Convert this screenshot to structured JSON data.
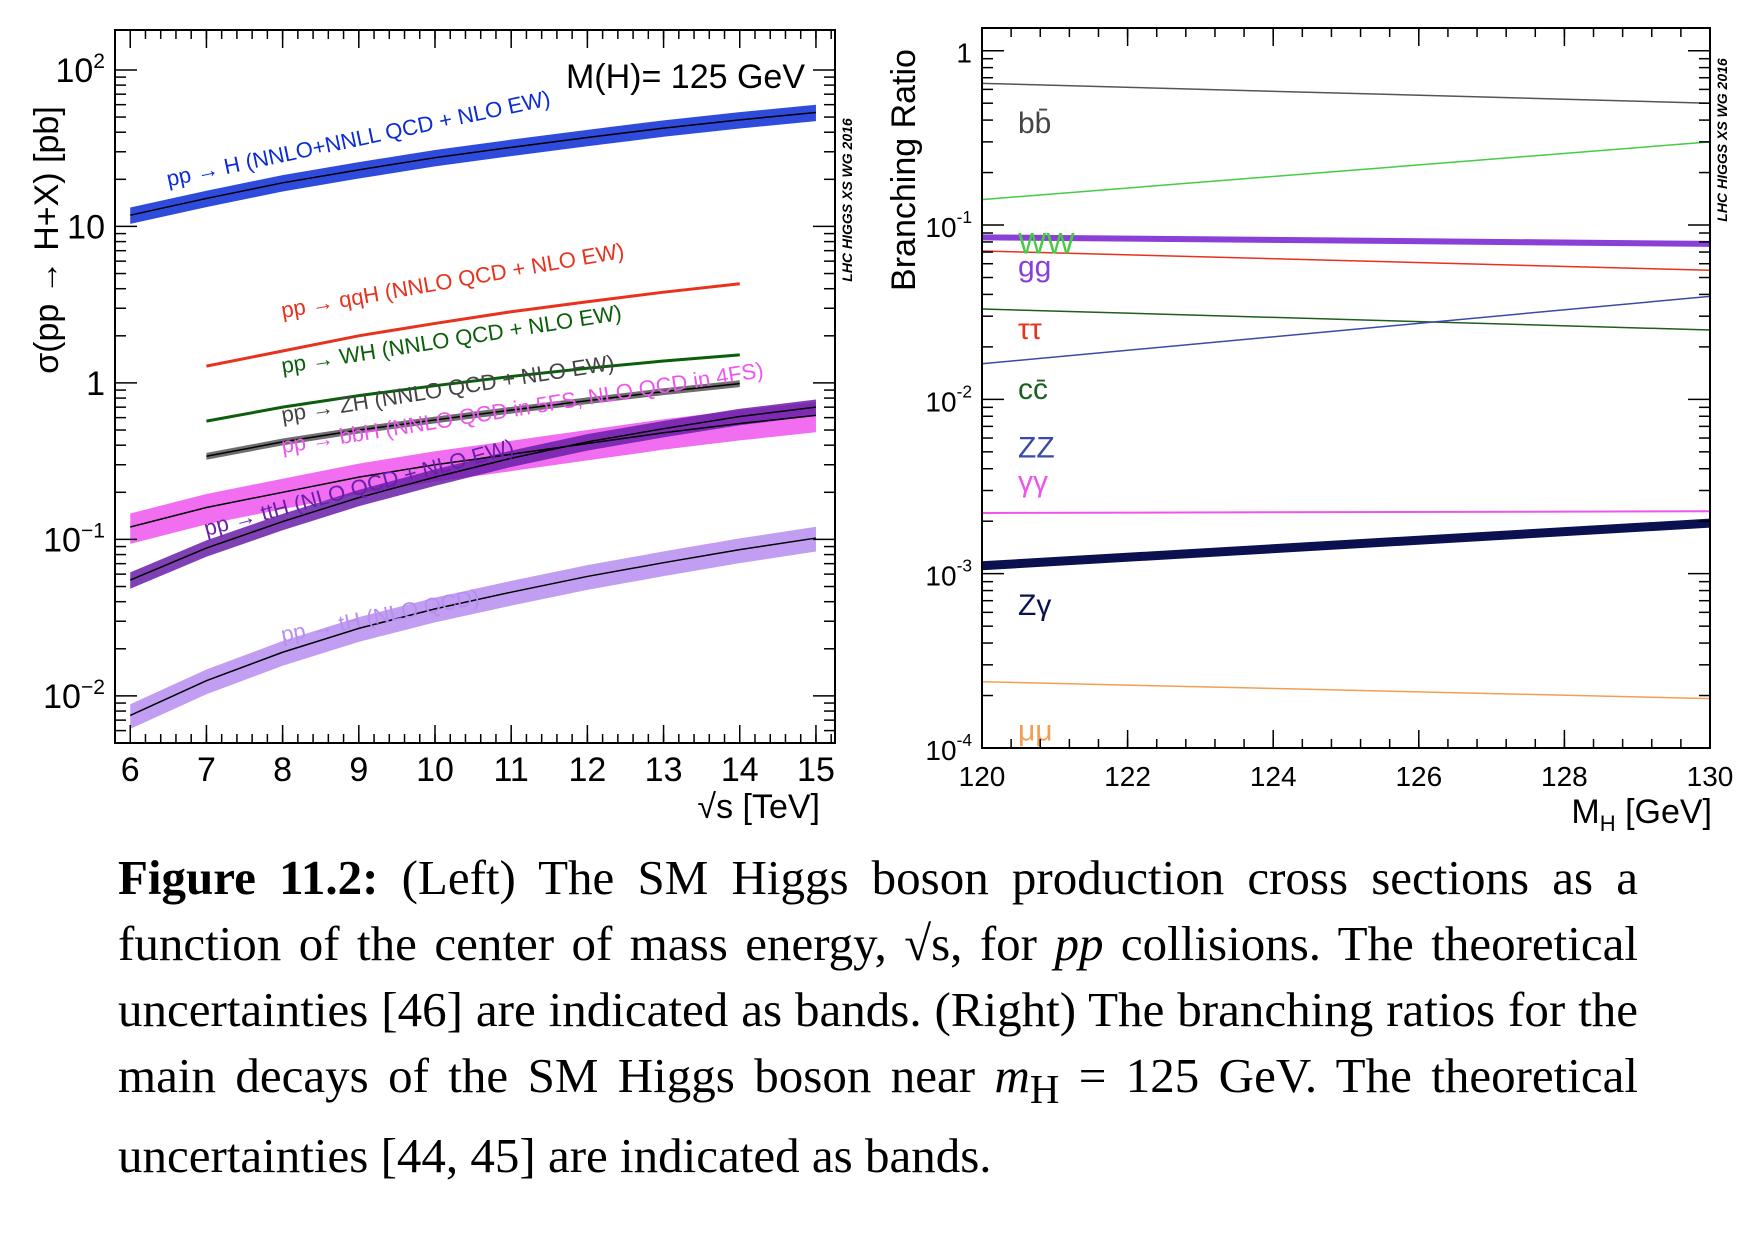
{
  "chart_data": [
    {
      "type": "line",
      "ylabel": "σ(pp → H+X) [pb]",
      "xlabel": "√s [TeV]",
      "annotation": "M(H)= 125 GeV",
      "watermark": "LHC HIGGS XS WG 2016",
      "xlim": [
        5.8,
        15.25
      ],
      "ylim": [
        0.005,
        180
      ],
      "yscale": "log",
      "xticks": [
        6,
        7,
        8,
        9,
        10,
        11,
        12,
        13,
        14,
        15
      ],
      "yticks": [
        {
          "value": 0.01,
          "base": "10",
          "exp": "−2"
        },
        {
          "value": 0.1,
          "base": "10",
          "exp": "−1"
        },
        {
          "value": 1,
          "base": "1",
          "exp": ""
        },
        {
          "value": 10,
          "base": "10",
          "exp": ""
        },
        {
          "value": 100,
          "base": "10",
          "exp": "2"
        }
      ],
      "series": [
        {
          "name": "pp → H (NNLO+NNLL QCD + NLO EW)",
          "color": "#0a2bd6",
          "band": true,
          "x": [
            6,
            7,
            8,
            9,
            10,
            11,
            12,
            13,
            14,
            15
          ],
          "y": [
            11.8,
            15.1,
            19.0,
            23.0,
            27.5,
            32.0,
            37.0,
            42.5,
            48.0,
            53.5
          ],
          "rel_unc": 0.12
        },
        {
          "name": "pp → qqH (NNLO QCD + NLO EW)",
          "color": "#e8321e",
          "band": false,
          "x": [
            7,
            8,
            9,
            10,
            11,
            12,
            13,
            14
          ],
          "y": [
            1.28,
            1.6,
            2.0,
            2.4,
            2.85,
            3.3,
            3.8,
            4.3
          ]
        },
        {
          "name": "pp → WH (NNLO QCD + NLO EW)",
          "color": "#0b5e0b",
          "band": false,
          "x": [
            7,
            8,
            9,
            10,
            11,
            12,
            13,
            14
          ],
          "y": [
            0.57,
            0.7,
            0.83,
            0.96,
            1.1,
            1.24,
            1.38,
            1.51
          ]
        },
        {
          "name": "pp → ZH (NNLO QCD + NLO EW)",
          "color": "#555555",
          "band": true,
          "x": [
            7,
            8,
            9,
            10,
            11,
            12,
            13,
            14
          ],
          "y": [
            0.34,
            0.42,
            0.5,
            0.58,
            0.67,
            0.77,
            0.88,
            0.99
          ],
          "rel_unc": 0.05
        },
        {
          "name": "pp → bbH (NNLO QCD in 5FS, NLO QCD in 4FS)",
          "color": "#ee55ee",
          "band": true,
          "x": [
            6,
            7,
            8,
            9,
            10,
            11,
            12,
            13,
            14,
            15
          ],
          "y": [
            0.12,
            0.16,
            0.2,
            0.25,
            0.3,
            0.35,
            0.41,
            0.48,
            0.55,
            0.62
          ],
          "rel_unc": 0.22
        },
        {
          "name": "pp → ttH (NLO QCD + NLO EW)",
          "color": "#6a1fa8",
          "band": true,
          "x": [
            6,
            7,
            8,
            9,
            10,
            11,
            12,
            13,
            14,
            15
          ],
          "y": [
            0.055,
            0.088,
            0.13,
            0.185,
            0.25,
            0.33,
            0.42,
            0.51,
            0.61,
            0.7
          ],
          "rel_unc": 0.12
        },
        {
          "name": "pp → tH (NLO QCD)",
          "color": "#b68df0",
          "band": true,
          "x": [
            6,
            7,
            8,
            9,
            10,
            11,
            12,
            13,
            14,
            15
          ],
          "y": [
            0.0075,
            0.0125,
            0.019,
            0.027,
            0.036,
            0.046,
            0.058,
            0.071,
            0.086,
            0.102
          ],
          "rel_unc": 0.18
        }
      ]
    },
    {
      "type": "line",
      "ylabel": "Branching Ratio",
      "xlabel": "M",
      "xlabel_sub": "H",
      "xlabel_unit": " [GeV]",
      "watermark": "LHC HIGGS XS WG 2016",
      "xlim": [
        120,
        130
      ],
      "ylim": [
        0.0001,
        1.35
      ],
      "yscale": "log",
      "xticks": [
        120,
        122,
        124,
        126,
        128,
        130
      ],
      "yticks": [
        {
          "value": 0.0001,
          "base": "10",
          "exp": "-4"
        },
        {
          "value": 0.001,
          "base": "10",
          "exp": "-3"
        },
        {
          "value": 0.01,
          "base": "10",
          "exp": "-2"
        },
        {
          "value": 0.1,
          "base": "10",
          "exp": "-1"
        },
        {
          "value": 1,
          "base": "1",
          "exp": ""
        }
      ],
      "series": [
        {
          "name": "bb̄",
          "color": "#555555",
          "x": [
            120,
            130
          ],
          "y": [
            0.65,
            0.5
          ],
          "width": 1.5
        },
        {
          "name": "WW",
          "color": "#44cc44",
          "x": [
            120,
            130
          ],
          "y": [
            0.14,
            0.3
          ],
          "width": 1.5
        },
        {
          "name": "gg",
          "color": "#8a3fd6",
          "x": [
            120,
            130
          ],
          "y": [
            0.085,
            0.078
          ],
          "width": 6
        },
        {
          "name": "ττ",
          "color": "#e8321e",
          "x": [
            120,
            130
          ],
          "y": [
            0.071,
            0.055
          ],
          "width": 1.5
        },
        {
          "name": "cc̄",
          "color": "#1e5e1e",
          "x": [
            120,
            130
          ],
          "y": [
            0.033,
            0.025
          ],
          "width": 1.5
        },
        {
          "name": "ZZ",
          "color": "#3a4aa8",
          "x": [
            120,
            130
          ],
          "y": [
            0.016,
            0.039
          ],
          "width": 1.5
        },
        {
          "name": "γγ",
          "color": "#ee55ee",
          "x": [
            120,
            130
          ],
          "y": [
            0.00223,
            0.00228
          ],
          "width": 2
        },
        {
          "name": "Zγ",
          "color": "#0a1050",
          "x": [
            120,
            130
          ],
          "y": [
            0.00111,
            0.00195
          ],
          "width": 9
        },
        {
          "name": "μμ",
          "color": "#f0a050",
          "x": [
            120,
            130
          ],
          "y": [
            0.00024,
            0.000192
          ],
          "width": 1.5
        }
      ]
    }
  ],
  "caption": {
    "label": "Figure 11.2:",
    "segments": [
      "  (Left) The SM Higgs boson production cross sections as a function of the center of mass energy, ",
      "√s",
      ", for ",
      "pp",
      " collisions. The theoretical uncertainties [46] are indicated as bands. (Right) The branching ratios for the main decays of the SM Higgs boson near ",
      "m",
      "H",
      " = 125 GeV. The theoretical uncertainties [44, 45] are indicated as bands."
    ]
  }
}
